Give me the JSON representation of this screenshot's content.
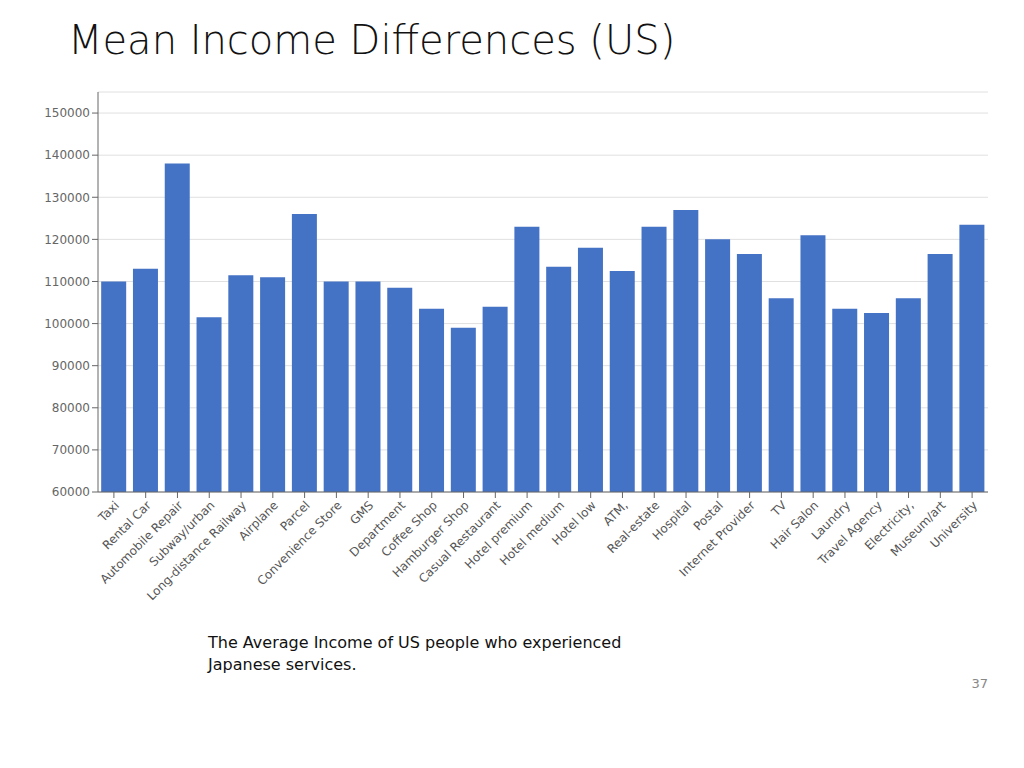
{
  "chart_data": {
    "type": "bar",
    "title": "Mean Income Differences (US)",
    "subtitle": [
      "The Average Income of US people who experienced",
      "Japanese services."
    ],
    "annotations": [
      "37"
    ],
    "categories": [
      "Taxi",
      "Rental Car",
      "Automobile Repair",
      "Subway/urban",
      "Long-distance Railway",
      "Airplane",
      "Parcel",
      "Convenience Store",
      "GMS",
      "Department",
      "Coffee Shop",
      "Hamburger Shop",
      "Casual Restaurant",
      "Hotel premium",
      "Hotel medium",
      "Hotel low",
      "ATM,",
      "Real-estate",
      "Hospital",
      "Postal",
      "Internet Provider",
      "TV",
      "Hair Salon",
      "Laundry",
      "Travel Agency",
      "Electricity,",
      "Museum/art",
      "University"
    ],
    "values": [
      110000,
      113000,
      138000,
      101500,
      111500,
      111000,
      126000,
      110000,
      110000,
      108500,
      103500,
      99000,
      104000,
      123000,
      113500,
      118000,
      112500,
      123000,
      127000,
      120000,
      116500,
      106000,
      121000,
      103500,
      102500,
      106000,
      116500,
      123500
    ],
    "color": "#4472C4",
    "ylim": [
      60000,
      155000
    ],
    "yticks": [
      60000,
      70000,
      80000,
      90000,
      100000,
      110000,
      120000,
      130000,
      140000,
      150000
    ],
    "grid": true
  }
}
